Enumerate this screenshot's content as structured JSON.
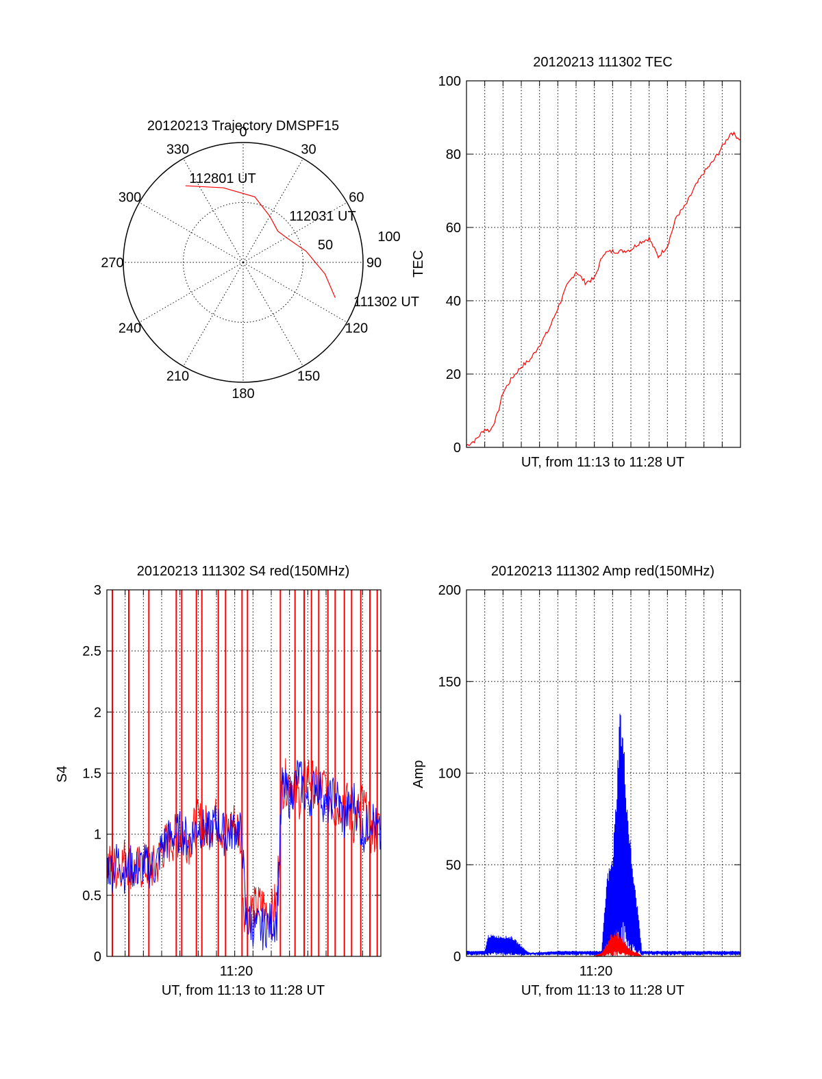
{
  "chart_data": [
    {
      "type": "polar",
      "title": "20120213 Trajectory DMSPF15",
      "angle_ticks": [
        "0",
        "30",
        "60",
        "90",
        "120",
        "150",
        "180",
        "210",
        "240",
        "270",
        "300",
        "330"
      ],
      "radius_ticks": [
        "50",
        "100"
      ],
      "elevation_labels": [
        {
          "text": "112801 UT",
          "azimuth": 323,
          "elevation": 18
        },
        {
          "text": "112031 UT",
          "azimuth": 48,
          "elevation": 55
        },
        {
          "text": "111302 UT",
          "azimuth": 111,
          "elevation": 16
        }
      ],
      "trajectory": {
        "color": "#ff0000",
        "points": [
          [
            323,
            18
          ],
          [
            345,
            32
          ],
          [
            10,
            40
          ],
          [
            30,
            50
          ],
          [
            48,
            55
          ],
          [
            62,
            52
          ],
          [
            80,
            42
          ],
          [
            98,
            28
          ],
          [
            111,
            16
          ]
        ]
      }
    },
    {
      "type": "line",
      "title": "20120213 111302 TEC",
      "ylabel": "TEC",
      "xlabel": "UT, from 11:13 to 11:28 UT",
      "xlim": [
        0,
        15
      ],
      "ylim": [
        0,
        100
      ],
      "yticks": [
        "0",
        "20",
        "40",
        "60",
        "80",
        "100"
      ],
      "series": [
        {
          "color": "#ff0000",
          "x": [
            0,
            0.5,
            1.0,
            1.3,
            1.7,
            2.0,
            2.5,
            3.0,
            3.5,
            4.0,
            4.5,
            5.0,
            5.5,
            6.0,
            6.5,
            7.0,
            7.5,
            8.0,
            8.5,
            9.0,
            9.5,
            10.0,
            10.5,
            11.0,
            11.5,
            12.0,
            12.5,
            13.0,
            13.5,
            14.0,
            14.5,
            15.0
          ],
          "y": [
            0.5,
            2,
            5,
            4.5,
            9,
            15,
            19,
            22,
            24,
            28,
            32,
            38,
            44,
            48,
            45,
            46,
            53,
            53.5,
            53.5,
            54,
            56,
            57,
            52,
            55,
            63,
            66,
            71,
            75,
            78,
            82,
            86,
            84
          ]
        }
      ]
    },
    {
      "type": "line",
      "title": "20120213 111302 S4 red(150MHz)",
      "ylabel": "S4",
      "xlabel": "UT, from 11:13 to 11:28 UT",
      "xtick_label": "11:20",
      "xlim": [
        0,
        15
      ],
      "ylim": [
        0,
        3
      ],
      "yticks": [
        "0",
        "0.5",
        "1",
        "1.5",
        "2",
        "2.5",
        "3"
      ],
      "series": [
        {
          "name": "",
          "color": "#ff0000",
          "spikes_x": [
            0.3,
            1.2,
            2.3,
            3.8,
            4.1,
            4.9,
            5.2,
            6.1,
            6.5,
            7.4,
            7.7,
            9.5,
            10.3,
            10.8,
            11.2,
            11.6,
            12.1,
            12.5,
            13.0,
            13.4,
            13.9,
            14.4,
            14.8
          ],
          "x": [
            0,
            0.5,
            1.0,
            1.5,
            2.0,
            2.7,
            3.0,
            3.5,
            4.0,
            4.5,
            5.0,
            5.5,
            6.0,
            6.5,
            7.0,
            7.3,
            7.5,
            8.0,
            8.5,
            9.0,
            9.3,
            9.6,
            10.0,
            10.5,
            11.0,
            11.5,
            12.0,
            12.5,
            13.0,
            13.5,
            14.0,
            14.5,
            15.0
          ],
          "y": [
            0.75,
            0.72,
            0.8,
            0.7,
            0.74,
            0.72,
            0.88,
            0.95,
            1.0,
            0.95,
            1.1,
            1.05,
            1.12,
            1.0,
            1.1,
            1.0,
            0.4,
            0.38,
            0.42,
            0.35,
            0.45,
            1.4,
            1.45,
            1.3,
            1.5,
            1.35,
            1.4,
            1.2,
            1.3,
            1.1,
            1.25,
            1.0,
            1.05
          ]
        },
        {
          "name": "",
          "color": "#0000ff",
          "x": [
            0,
            0.3,
            0.6,
            1.0,
            1.3,
            1.6,
            2.0,
            2.4,
            2.7,
            3.0,
            3.5,
            4.0,
            4.5,
            5.0,
            5.5,
            6.0,
            6.5,
            7.0,
            7.4,
            7.6,
            8.0,
            8.5,
            9.0,
            9.3,
            9.6,
            10.0,
            10.5,
            11.0,
            11.5,
            12.0,
            12.5,
            13.0,
            13.5,
            14.0,
            14.5,
            15.0
          ],
          "y": [
            0.75,
            0.7,
            0.8,
            0.68,
            0.74,
            0.7,
            0.76,
            0.72,
            0.74,
            0.9,
            0.98,
            1.02,
            0.96,
            1.08,
            1.0,
            1.1,
            0.98,
            1.05,
            1.0,
            0.3,
            0.25,
            0.22,
            0.28,
            0.3,
            1.4,
            1.3,
            1.5,
            1.25,
            1.45,
            1.2,
            1.35,
            1.1,
            1.3,
            1.0,
            1.15,
            0.95
          ]
        }
      ]
    },
    {
      "type": "line",
      "title": "20120213 111302 Amp red(150MHz)",
      "ylabel": "Amp",
      "xlabel": "UT, from 11:13 to 11:28 UT",
      "xtick_label": "11:20",
      "xlim": [
        0,
        15
      ],
      "ylim": [
        0,
        200
      ],
      "yticks": [
        "0",
        "50",
        "100",
        "150",
        "200"
      ],
      "series": [
        {
          "name": "",
          "color": "#0000ff",
          "x": [
            0,
            1.0,
            1.2,
            2.5,
            3.3,
            3.5,
            5.0,
            6.0,
            6.5,
            7.0,
            7.4,
            7.7,
            8.0,
            8.2,
            8.4,
            8.6,
            8.8,
            9.0,
            9.2,
            9.4,
            9.6,
            10.0,
            12.0,
            15.0
          ],
          "y": [
            3,
            3,
            12,
            11,
            3,
            2,
            3,
            3,
            3,
            3,
            3,
            45,
            55,
            90,
            140,
            120,
            85,
            60,
            40,
            25,
            3,
            3,
            3,
            3
          ]
        },
        {
          "name": "",
          "color": "#ff0000",
          "x": [
            0,
            7.0,
            7.4,
            7.7,
            8.0,
            8.2,
            8.4,
            8.6,
            8.8,
            9.0,
            9.2,
            9.4,
            9.6,
            15.0
          ],
          "y": [
            0,
            0,
            2,
            8,
            14,
            15,
            12,
            10,
            6,
            4,
            3,
            2,
            0,
            0
          ]
        }
      ]
    }
  ]
}
